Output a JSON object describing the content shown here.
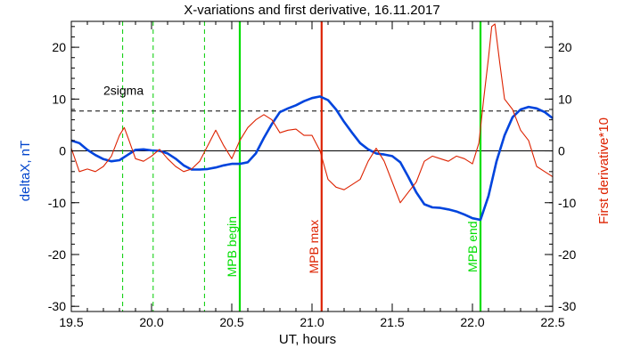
{
  "chart_data": {
    "type": "line",
    "title": "X-variations and first derivative, 16.11.2017",
    "xlabel": "UT, hours",
    "ylabel_left": "deltaX, nT",
    "ylabel_right": "First derivative*10",
    "xlim": [
      19.5,
      22.5
    ],
    "ylim_left": [
      -31,
      25
    ],
    "ylim_right": [
      -31,
      25
    ],
    "x_ticks": [
      "19.5",
      "20.0",
      "20.5",
      "21.0",
      "21.5",
      "22.0",
      "22.5"
    ],
    "x_tick_values": [
      19.5,
      20.0,
      20.5,
      21.0,
      21.5,
      22.0,
      22.5
    ],
    "y_ticks": [
      "20",
      "10",
      "0",
      "-10",
      "-20",
      "-30"
    ],
    "y_tick_values": [
      20,
      10,
      0,
      -10,
      -20,
      -30
    ],
    "y_ticks_right": [
      "20",
      "10",
      "0",
      "-10",
      "-20",
      "-30"
    ],
    "colors": {
      "deltax": "#0044dd",
      "derivative": "#dd2200",
      "mpb_begin_end": "#00dd00",
      "mpb_max": "#dd2200",
      "dashed_green": "#00cc00",
      "sigma_line": "#000000",
      "left_label": "#0044cc",
      "right_label": "#dd2200"
    },
    "series": [
      {
        "name": "deltaX",
        "x": [
          19.5,
          19.55,
          19.6,
          19.65,
          19.7,
          19.75,
          19.8,
          19.85,
          19.9,
          19.95,
          20.0,
          20.05,
          20.1,
          20.15,
          20.2,
          20.25,
          20.3,
          20.35,
          20.4,
          20.45,
          20.5,
          20.55,
          20.6,
          20.65,
          20.7,
          20.75,
          20.8,
          20.85,
          20.9,
          20.95,
          21.0,
          21.05,
          21.1,
          21.15,
          21.2,
          21.25,
          21.3,
          21.35,
          21.4,
          21.45,
          21.5,
          21.55,
          21.6,
          21.65,
          21.7,
          21.75,
          21.8,
          21.85,
          21.9,
          21.95,
          22.0,
          22.05,
          22.1,
          22.15,
          22.2,
          22.25,
          22.3,
          22.35,
          22.4,
          22.45,
          22.5
        ],
        "values": [
          2,
          1.5,
          0.2,
          -0.8,
          -1.6,
          -2,
          -1.8,
          -0.8,
          0.2,
          0.3,
          0.1,
          0,
          -0.5,
          -1.5,
          -2.8,
          -3.6,
          -3.6,
          -3.5,
          -3.2,
          -2.8,
          -2.5,
          -2.5,
          -2.2,
          -0.5,
          2.5,
          5.2,
          7.5,
          8.2,
          8.8,
          9.6,
          10.2,
          10.5,
          9.8,
          8,
          5.6,
          3.5,
          1.5,
          0.3,
          -0.5,
          -0.7,
          -1,
          -2.2,
          -5,
          -8,
          -10.3,
          -10.9,
          -11,
          -11.3,
          -11.7,
          -12.3,
          -13,
          -13.3,
          -8.7,
          -2,
          3,
          6.5,
          8,
          8.5,
          8.2,
          7.5,
          6.3
        ]
      },
      {
        "name": "First derivative*10",
        "x": [
          19.5,
          19.55,
          19.6,
          19.65,
          19.7,
          19.75,
          19.8,
          19.83,
          19.86,
          19.9,
          19.95,
          20.0,
          20.05,
          20.1,
          20.15,
          20.2,
          20.25,
          20.3,
          20.35,
          20.4,
          20.45,
          20.5,
          20.55,
          20.6,
          20.65,
          20.7,
          20.75,
          20.8,
          20.85,
          20.9,
          20.95,
          21.0,
          21.05,
          21.1,
          21.15,
          21.2,
          21.25,
          21.3,
          21.35,
          21.4,
          21.45,
          21.5,
          21.55,
          21.6,
          21.65,
          21.7,
          21.75,
          21.8,
          21.85,
          21.9,
          21.95,
          22.0,
          22.04,
          22.07,
          22.1,
          22.12,
          22.14,
          22.17,
          22.2,
          22.25,
          22.3,
          22.35,
          22.4,
          22.45,
          22.5
        ],
        "values": [
          0.5,
          -4,
          -3.5,
          -4,
          -3,
          -1,
          3,
          4.5,
          2,
          -1.5,
          -2,
          -1,
          0.3,
          -1.5,
          -3,
          -4,
          -3.5,
          -2,
          1,
          4,
          1,
          -1.5,
          2,
          4.5,
          6,
          7,
          6,
          3.5,
          4,
          4.2,
          3,
          3,
          0,
          -5.5,
          -7,
          -7.5,
          -6.5,
          -5.5,
          -2,
          0.5,
          -2,
          -6,
          -10,
          -8,
          -6,
          -2,
          -1,
          -1.5,
          -2,
          -1,
          -1.5,
          -2.5,
          1.5,
          10,
          18,
          24,
          24.5,
          17,
          10,
          8,
          4,
          2,
          -3,
          -4,
          -5
        ]
      }
    ],
    "reference_lines": [
      {
        "orientation": "horizontal",
        "y": 7.7,
        "style": "dashed",
        "color": "#000000"
      },
      {
        "orientation": "horizontal",
        "y": 0,
        "style": "solid",
        "color": "#000000"
      },
      {
        "orientation": "vertical",
        "x": 19.82,
        "style": "dashed",
        "color": "#00cc00"
      },
      {
        "orientation": "vertical",
        "x": 20.01,
        "style": "dashed",
        "color": "#00cc00"
      },
      {
        "orientation": "vertical",
        "x": 20.33,
        "style": "dashed",
        "color": "#00cc00"
      },
      {
        "orientation": "vertical",
        "x": 20.55,
        "style": "solid",
        "color": "#00dd00"
      },
      {
        "orientation": "vertical",
        "x": 21.06,
        "style": "solid",
        "color": "#dd2200"
      },
      {
        "orientation": "vertical",
        "x": 22.05,
        "style": "solid",
        "color": "#00dd00"
      }
    ],
    "annotations": [
      {
        "text": "2sigma",
        "x": 19.7,
        "y": 10.8,
        "color": "#000000"
      },
      {
        "text": "MPB begin",
        "x": 20.55,
        "y": -18.5,
        "color": "#00dd00",
        "rotated": true
      },
      {
        "text": "MPB max",
        "x": 21.06,
        "y": -18.5,
        "color": "#dd2200",
        "rotated": true
      },
      {
        "text": "MPB end",
        "x": 22.05,
        "y": -18.5,
        "color": "#00dd00",
        "rotated": true
      }
    ],
    "grid": false,
    "legend": "none"
  }
}
